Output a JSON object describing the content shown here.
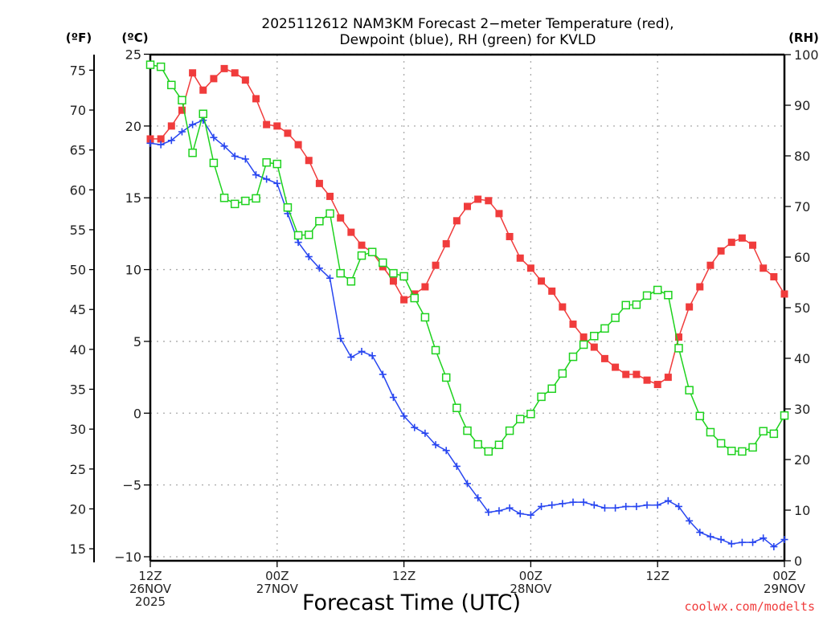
{
  "chart_data": {
    "type": "line",
    "title": [
      "2025112612 NAM3KM Forecast 2−meter Temperature (red),",
      "Dewpoint (blue), RH (green) for KVLD"
    ],
    "xlabel": "Forecast Time (UTC)",
    "ylabel_left_outer": "(ºF)",
    "ylabel_left_inner": "(ºC)",
    "ylabel_right": "(RH)",
    "credit": "coolwx.com/modelts",
    "x_unit": "forecast hour from 12Z 26NOV 2025",
    "x_range": [
      0,
      60
    ],
    "x_ticks": [
      {
        "hour": 0,
        "lines": [
          "12Z",
          "26NOV",
          "2025"
        ]
      },
      {
        "hour": 12,
        "lines": [
          "00Z",
          "27NOV"
        ]
      },
      {
        "hour": 24,
        "lines": [
          "12Z"
        ]
      },
      {
        "hour": 36,
        "lines": [
          "00Z",
          "28NOV"
        ]
      },
      {
        "hour": 48,
        "lines": [
          "12Z"
        ]
      },
      {
        "hour": 60,
        "lines": [
          "00Z",
          "29NOV"
        ]
      }
    ],
    "y_celsius": {
      "range": [
        -10,
        25
      ],
      "ticks": [
        25,
        20,
        15,
        10,
        5,
        0,
        -5,
        -10
      ],
      "tick_labels": [
        "25",
        "20",
        "15",
        "10",
        "5",
        "0",
        "−5",
        "−10"
      ]
    },
    "y_fahrenheit": {
      "ticks": [
        75,
        70,
        65,
        60,
        55,
        50,
        45,
        40,
        35,
        30,
        25,
        20,
        15
      ]
    },
    "y_rh": {
      "range": [
        0,
        100
      ],
      "ticks": [
        100,
        90,
        80,
        70,
        60,
        50,
        40,
        30,
        20,
        10,
        0
      ]
    },
    "grid": true,
    "colors": {
      "temperature": "#f03c3c",
      "dewpoint": "#2846f0",
      "rh": "#1ed21e",
      "credit": "#f03c3c"
    },
    "series": [
      {
        "name": "Temperature",
        "unit": "C",
        "axis": "celsius",
        "marker": "filled-square",
        "color_key": "temperature",
        "values": [
          19.1,
          19.1,
          20.0,
          21.1,
          23.7,
          22.5,
          23.3,
          24.0,
          23.7,
          23.2,
          21.9,
          20.1,
          20.0,
          19.5,
          18.7,
          17.6,
          16.0,
          15.1,
          13.6,
          12.6,
          11.7,
          11.2,
          10.2,
          9.2,
          7.9,
          8.3,
          8.8,
          10.3,
          11.8,
          13.4,
          14.4,
          14.9,
          14.8,
          13.9,
          12.3,
          10.8,
          10.1,
          9.2,
          8.5,
          7.4,
          6.2,
          5.3,
          4.6,
          3.8,
          3.2,
          2.7,
          2.7,
          2.3,
          2.0,
          2.5,
          5.3,
          7.4,
          8.8,
          10.3,
          11.3,
          11.9,
          12.2,
          11.7,
          10.1,
          9.5,
          8.3
        ]
      },
      {
        "name": "Dewpoint",
        "unit": "C",
        "axis": "celsius",
        "marker": "plus",
        "color_key": "dewpoint",
        "values": [
          18.8,
          18.7,
          19.0,
          19.6,
          20.1,
          20.4,
          19.2,
          18.6,
          17.9,
          17.7,
          16.6,
          16.3,
          16.0,
          13.9,
          11.9,
          10.9,
          10.1,
          9.4,
          5.2,
          3.9,
          4.3,
          4.0,
          2.7,
          1.1,
          -0.2,
          -1.0,
          -1.4,
          -2.2,
          -2.6,
          -3.7,
          -4.9,
          -5.9,
          -6.9,
          -6.8,
          -6.6,
          -7.0,
          -7.1,
          -6.5,
          -6.4,
          -6.3,
          -6.2,
          -6.2,
          -6.4,
          -6.6,
          -6.6,
          -6.5,
          -6.5,
          -6.4,
          -6.4,
          -6.1,
          -6.5,
          -7.5,
          -8.3,
          -8.6,
          -8.8,
          -9.1,
          -9.0,
          -9.0,
          -8.7,
          -9.3,
          -8.8
        ]
      },
      {
        "name": "RH",
        "unit": "%",
        "axis": "rh",
        "marker": "open-square",
        "color_key": "rh",
        "values": [
          98.0,
          97.6,
          94.0,
          91.0,
          80.6,
          88.3,
          78.6,
          71.7,
          70.5,
          71.1,
          71.6,
          78.7,
          78.4,
          69.8,
          64.3,
          64.4,
          67.1,
          68.6,
          56.8,
          55.2,
          60.3,
          61.0,
          58.9,
          56.8,
          56.2,
          51.9,
          48.1,
          41.6,
          36.2,
          30.2,
          25.7,
          23.0,
          21.6,
          22.9,
          25.7,
          28.0,
          29.0,
          32.4,
          34.0,
          37.0,
          40.3,
          42.7,
          44.4,
          45.9,
          48.0,
          50.5,
          50.6,
          52.4,
          53.5,
          52.5,
          42.0,
          33.7,
          28.6,
          25.4,
          23.2,
          21.7,
          21.6,
          22.4,
          25.6,
          25.1,
          28.7
        ]
      }
    ]
  }
}
